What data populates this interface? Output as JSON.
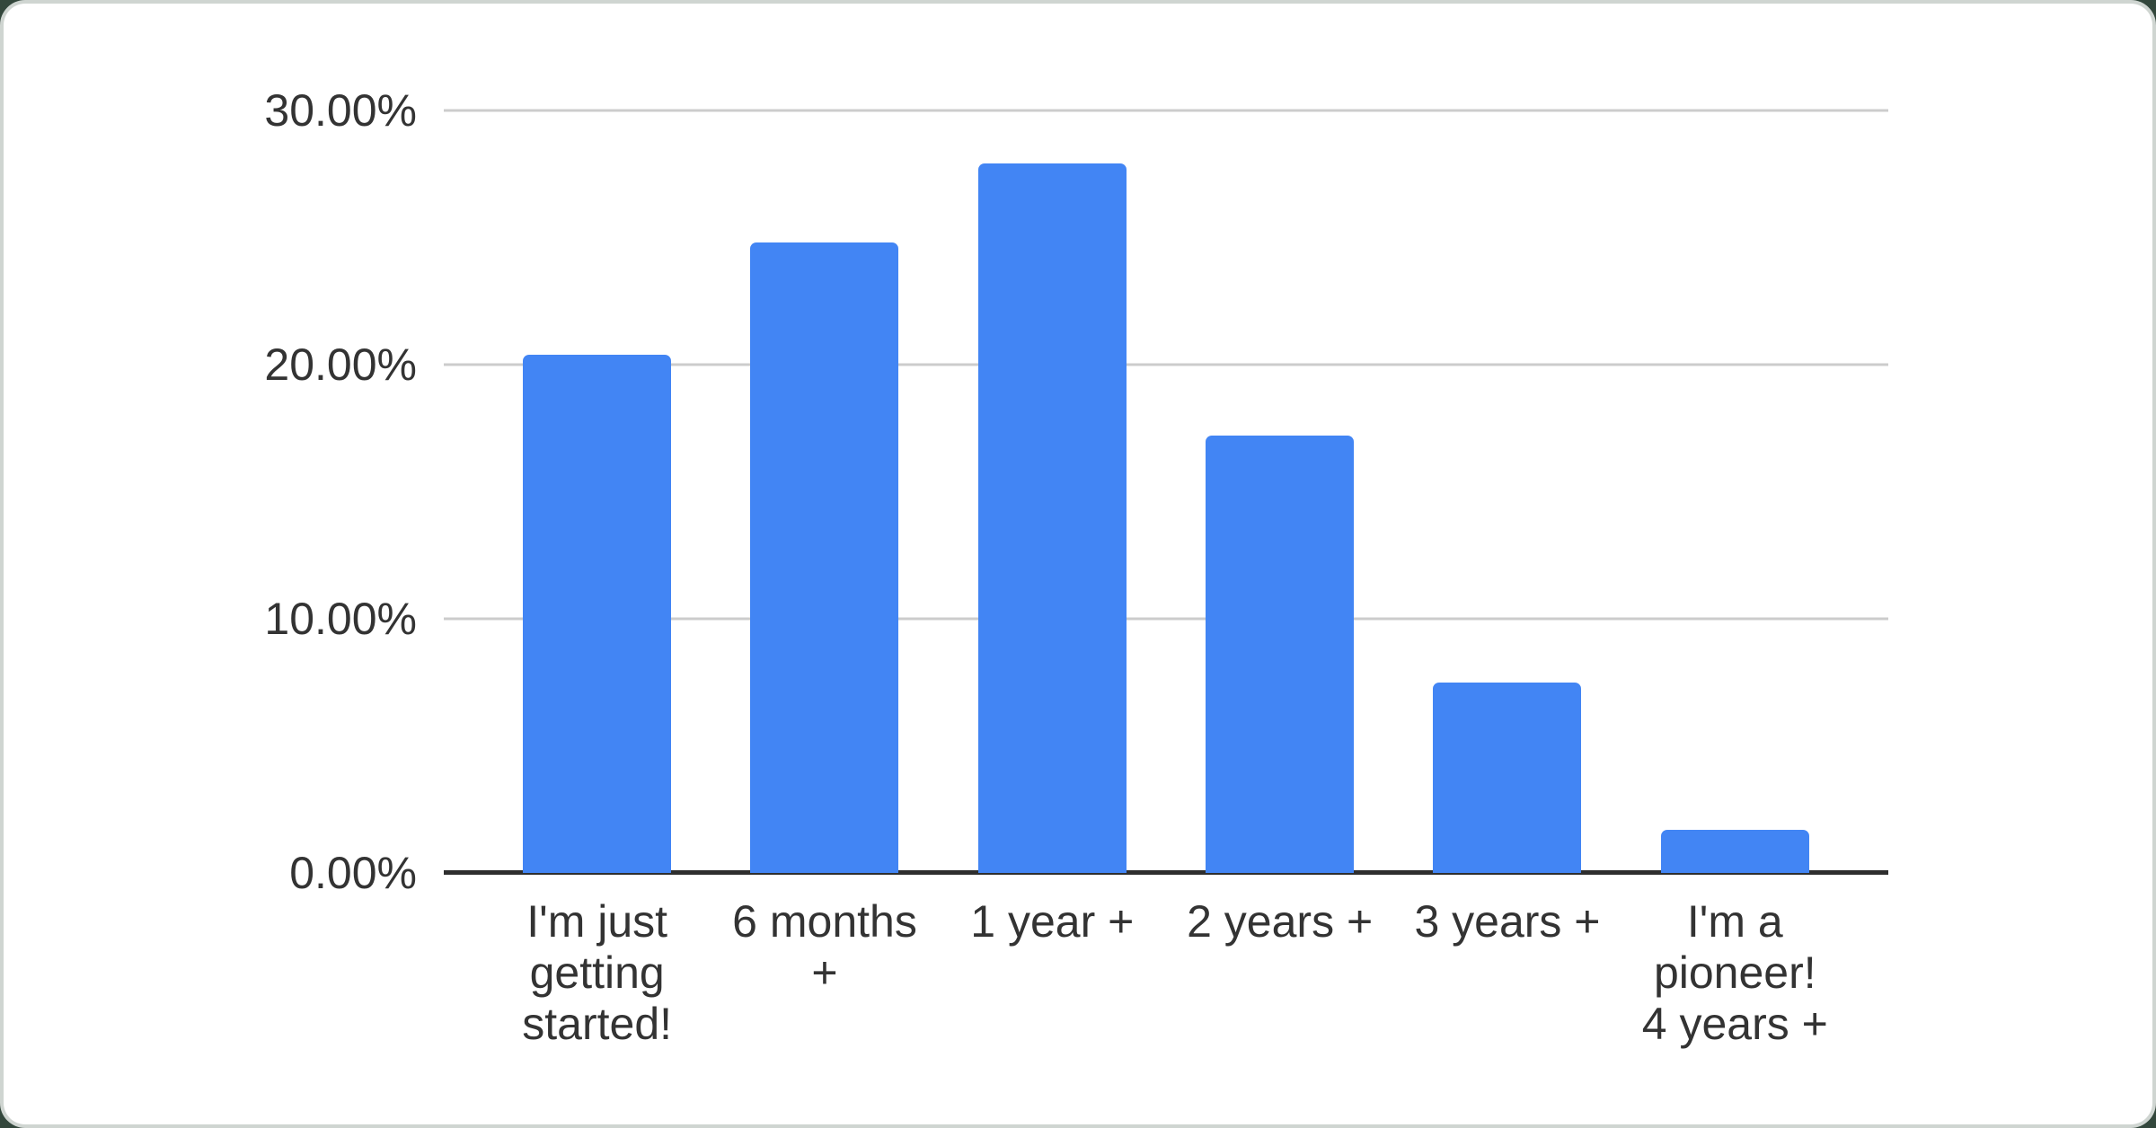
{
  "page": {
    "backdrop_color": "#33473c",
    "ring_color": "#cfd5d1",
    "card_color": "#ffffff"
  },
  "chart_data": {
    "type": "bar",
    "title": "",
    "xlabel": "",
    "ylabel": "",
    "categories": [
      "I'm just getting started!",
      "6 months +",
      "1 year +",
      "2 years +",
      "3 years +",
      "I'm a pioneer! 4 years +"
    ],
    "tick_labels": [
      "I'm just\ngetting\nstarted!",
      "6 months\n+",
      "1 year +",
      "2 years +",
      "3 years +",
      "I'm a\npioneer!\n4 years +"
    ],
    "values": [
      20.4,
      24.8,
      27.9,
      17.2,
      7.5,
      1.7
    ],
    "unit": "%",
    "ylim": [
      0,
      30
    ],
    "y_ticks": [
      "30.00%",
      "20.00%",
      "10.00%",
      "0.00%"
    ],
    "y_tick_values": [
      30,
      20,
      10,
      0
    ],
    "legend": "none",
    "grid": "horizontal",
    "bar_color": "#4285f4",
    "gridline_color": "#cccccc",
    "axis_line_color": "#2e2e2e",
    "text_color": "#333333"
  }
}
